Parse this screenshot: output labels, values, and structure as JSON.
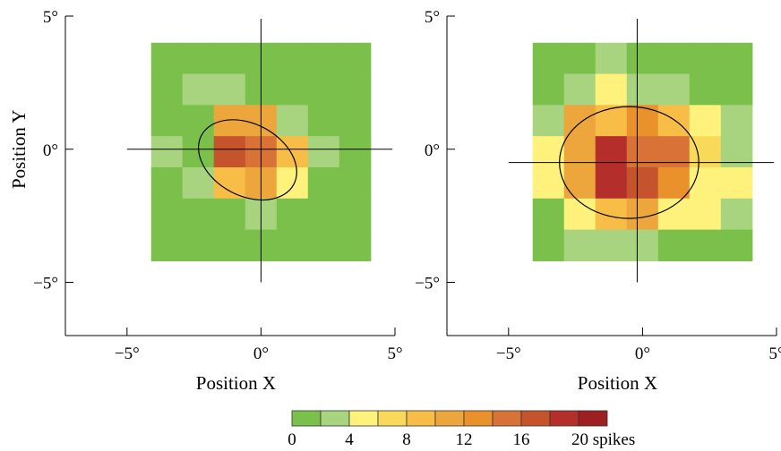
{
  "chart_data": {
    "type": "heatmap",
    "units": "spikes",
    "colorbar": {
      "colors": [
        "#7ac04b",
        "#a9d47f",
        "#fff27c",
        "#f8d95a",
        "#f7bd47",
        "#eca63c",
        "#e9922c",
        "#d97236",
        "#c5532c",
        "#b42f2c",
        "#9d1f22"
      ],
      "tick_values": [
        0,
        4,
        8,
        12,
        16,
        20
      ],
      "tick_labels": [
        "0",
        "4",
        "8",
        "12",
        "16",
        "20 spikes"
      ]
    },
    "panels": [
      {
        "id": "left",
        "xlabel": "Position X",
        "ylabel": "Position Y",
        "xlim": [
          -7.3,
          5.0
        ],
        "ylim": [
          -7.0,
          5.0
        ],
        "xticks": [
          -5,
          0,
          5
        ],
        "xtick_labels": [
          "−5°",
          "0°",
          "5°"
        ],
        "yticks": [
          5,
          0,
          -5
        ],
        "ytick_labels": [
          "5°",
          "0°",
          "−5°"
        ],
        "grid_x0": -4.1,
        "grid_y_top": 4.0,
        "cell_size": 1.17,
        "grid": [
          [
            0,
            0,
            0,
            0,
            0,
            0,
            0
          ],
          [
            0,
            1,
            1,
            0,
            0,
            0,
            0
          ],
          [
            0,
            0,
            5,
            5,
            1,
            0,
            0
          ],
          [
            1,
            0,
            8,
            7,
            4,
            1,
            0
          ],
          [
            0,
            1,
            4,
            5,
            2,
            0,
            0
          ],
          [
            0,
            0,
            0,
            1,
            0,
            0,
            0
          ],
          [
            0,
            0,
            0,
            0,
            0,
            0,
            0
          ]
        ],
        "crosshair": {
          "x": 0,
          "y": 0
        },
        "ellipse": {
          "cx": -0.5,
          "cy": -0.4,
          "rx": 1.95,
          "ry": 1.35,
          "angle": 28
        }
      },
      {
        "id": "right",
        "xlabel": "Position X",
        "xlim": [
          -7.3,
          5.0
        ],
        "ylim": [
          -7.0,
          5.0
        ],
        "xticks": [
          -5,
          0,
          5
        ],
        "xtick_labels": [
          "−5°",
          "0°",
          "5°"
        ],
        "yticks": [
          5,
          0,
          -5
        ],
        "ytick_labels": [
          "5°",
          "0°",
          "−5°"
        ],
        "grid_x0": -4.1,
        "grid_y_top": 4.0,
        "cell_size": 1.17,
        "grid": [
          [
            0,
            0,
            1,
            0,
            0,
            0,
            0
          ],
          [
            0,
            1,
            2,
            1,
            1,
            0,
            0
          ],
          [
            1,
            5,
            4,
            6,
            4,
            2,
            1
          ],
          [
            2,
            5,
            9,
            7,
            7,
            3,
            1
          ],
          [
            2,
            5,
            9,
            8,
            6,
            2,
            2
          ],
          [
            0,
            2,
            4,
            5,
            2,
            2,
            1
          ],
          [
            0,
            1,
            1,
            1,
            0,
            0,
            0
          ]
        ],
        "crosshair": {
          "x": -0.2,
          "y": -0.5
        },
        "ellipse": {
          "cx": -0.5,
          "cy": -0.5,
          "rx": 2.6,
          "ry": 2.1,
          "angle": 0
        }
      }
    ]
  }
}
